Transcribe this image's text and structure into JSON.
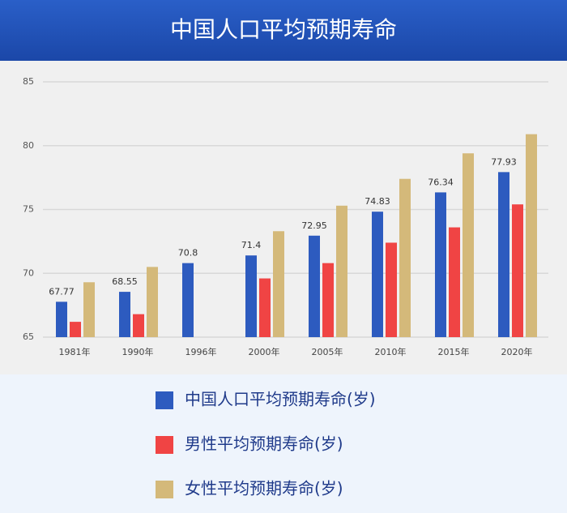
{
  "chart_data": {
    "type": "bar",
    "title": "中国人口平均预期寿命",
    "categories": [
      "1981年",
      "1990年",
      "1996年",
      "2000年",
      "2005年",
      "2010年",
      "2015年",
      "2020年"
    ],
    "series": [
      {
        "name": "中国人口平均预期寿命(岁)",
        "color": "#2d5bbf",
        "values": [
          67.77,
          68.55,
          70.8,
          71.4,
          72.95,
          74.83,
          76.34,
          77.93
        ]
      },
      {
        "name": "男性平均预期寿命(岁)",
        "color": "#f04444",
        "values": [
          66.2,
          66.8,
          null,
          69.6,
          70.8,
          72.4,
          73.6,
          75.4
        ]
      },
      {
        "name": "女性平均预期寿命(岁)",
        "color": "#d4b97a",
        "values": [
          69.3,
          70.5,
          null,
          73.3,
          75.3,
          77.4,
          79.4,
          80.9
        ]
      }
    ],
    "ylim": [
      65,
      85
    ],
    "yticks": [
      65,
      70,
      75,
      80,
      85
    ],
    "grid": true
  }
}
